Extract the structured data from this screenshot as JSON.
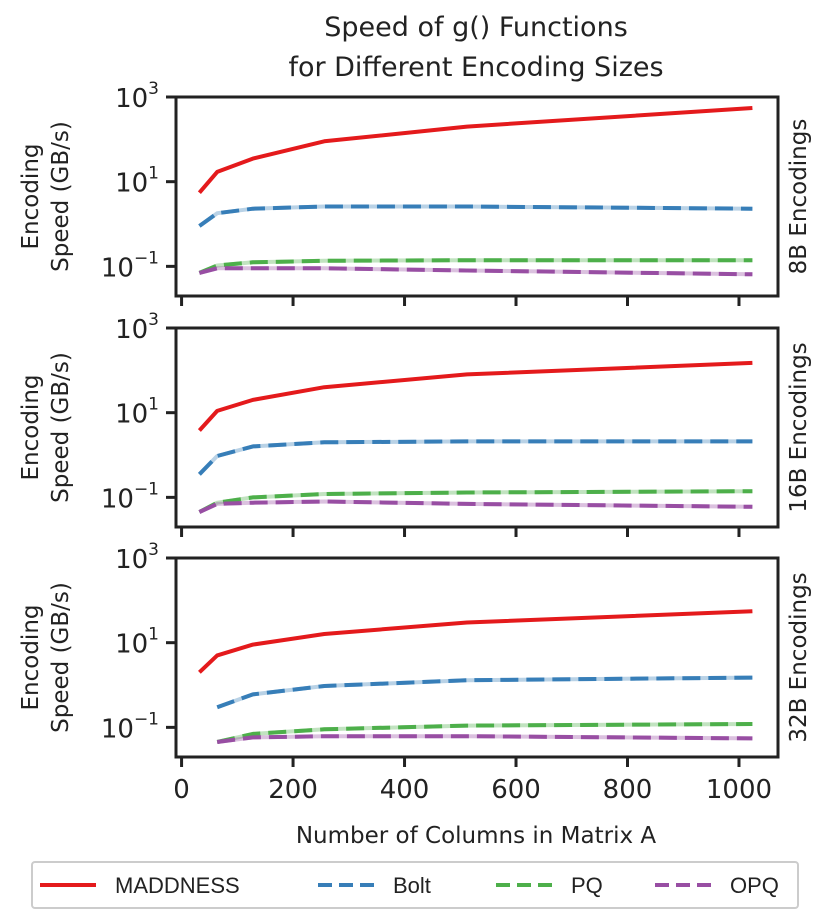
{
  "chart_data": {
    "type": "line",
    "title_lines": [
      "Speed of g() Functions",
      "for Different Encoding Sizes"
    ],
    "xlabel": "Number of Columns in Matrix A",
    "ylabel_lines": [
      "Encoding",
      "Speed (GB/s)"
    ],
    "yscale": "log",
    "ylim_exponents": [
      -1.7,
      3
    ],
    "ytick_exponents": [
      -1,
      1,
      3
    ],
    "ytick_base": "10",
    "xlim": [
      -10,
      1070
    ],
    "xticks": [
      0,
      200,
      400,
      600,
      800,
      1000
    ],
    "xtick_labels": [
      "0",
      "200",
      "400",
      "600",
      "800",
      "1000"
    ],
    "legend_placement": "bottom",
    "series_styles": [
      {
        "name": "MADDNESS",
        "color": "#e41a1c",
        "dash": "solid"
      },
      {
        "name": "Bolt",
        "color": "#377eb8",
        "dash": "dashed"
      },
      {
        "name": "PQ",
        "color": "#4daf4a",
        "dash": "dashed"
      },
      {
        "name": "OPQ",
        "color": "#984ea3",
        "dash": "dashed"
      }
    ],
    "panels": [
      {
        "label": "8B Encodings",
        "series": [
          {
            "name": "MADDNESS",
            "x": [
              32,
              64,
              128,
              256,
              512,
              1024
            ],
            "y": [
              5.5,
              17,
              35,
              90,
              200,
              550
            ]
          },
          {
            "name": "Bolt",
            "x": [
              32,
              64,
              128,
              256,
              512,
              1024
            ],
            "y": [
              0.9,
              1.8,
              2.3,
              2.6,
              2.6,
              2.3
            ]
          },
          {
            "name": "PQ",
            "x": [
              32,
              64,
              128,
              256,
              512,
              1024
            ],
            "y": [
              0.07,
              0.105,
              0.125,
              0.135,
              0.14,
              0.14
            ]
          },
          {
            "name": "OPQ",
            "x": [
              32,
              64,
              128,
              256,
              512,
              1024
            ],
            "y": [
              0.07,
              0.09,
              0.09,
              0.09,
              0.08,
              0.065
            ]
          }
        ]
      },
      {
        "label": "16B Encodings",
        "series": [
          {
            "name": "MADDNESS",
            "x": [
              32,
              64,
              128,
              256,
              512,
              1024
            ],
            "y": [
              3.8,
              11,
              20,
              40,
              80,
              150
            ]
          },
          {
            "name": "Bolt",
            "x": [
              32,
              64,
              128,
              256,
              512,
              1024
            ],
            "y": [
              0.35,
              0.95,
              1.6,
              2.0,
              2.1,
              2.1
            ]
          },
          {
            "name": "PQ",
            "x": [
              32,
              64,
              128,
              256,
              512,
              1024
            ],
            "y": [
              0.045,
              0.075,
              0.1,
              0.12,
              0.13,
              0.14
            ]
          },
          {
            "name": "OPQ",
            "x": [
              32,
              64,
              128,
              256,
              512,
              1024
            ],
            "y": [
              0.045,
              0.07,
              0.075,
              0.08,
              0.07,
              0.06
            ]
          }
        ]
      },
      {
        "label": "32B Encodings",
        "series": [
          {
            "name": "MADDNESS",
            "x": [
              32,
              64,
              128,
              256,
              512,
              1024
            ],
            "y": [
              2.0,
              5.0,
              9.0,
              16,
              30,
              55
            ]
          },
          {
            "name": "Bolt",
            "x": [
              64,
              128,
              256,
              512,
              1024
            ],
            "y": [
              0.3,
              0.6,
              0.95,
              1.3,
              1.5
            ]
          },
          {
            "name": "PQ",
            "x": [
              64,
              128,
              256,
              512,
              1024
            ],
            "y": [
              0.045,
              0.07,
              0.09,
              0.11,
              0.12
            ]
          },
          {
            "name": "OPQ",
            "x": [
              64,
              128,
              256,
              512,
              1024
            ],
            "y": [
              0.045,
              0.058,
              0.062,
              0.062,
              0.055
            ]
          }
        ]
      }
    ]
  }
}
